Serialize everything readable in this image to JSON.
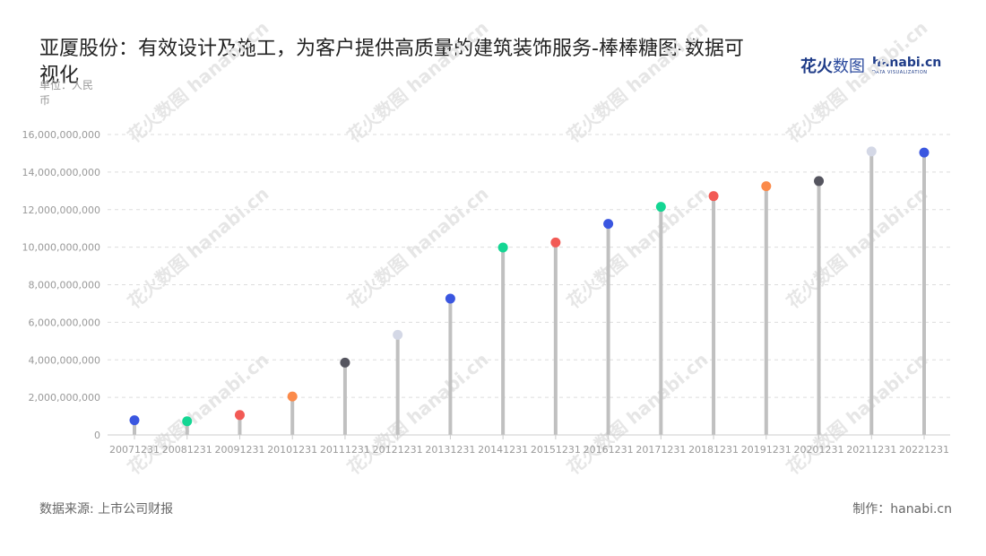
{
  "header": {
    "title": "亚厦股份：有效设计及施工，为客户提供高质量的建筑装饰服务-棒棒糖图-数据可视化",
    "unit": "单位：人民币"
  },
  "logo": {
    "cn_text": "花火",
    "cn_text_light": "数图",
    "en_text": "hanabi.cn",
    "en_sub": "DATA VISUALIZATION"
  },
  "footer": {
    "source": "数据来源: 上市公司财报",
    "credit": "制作：hanabi.cn"
  },
  "chart_data": {
    "type": "lollipop",
    "categories": [
      "20071231",
      "20081231",
      "20091231",
      "20101231",
      "20111231",
      "20121231",
      "20131231",
      "20141231",
      "20151231",
      "20161231",
      "20171231",
      "20181231",
      "20191231",
      "20201231",
      "20211231",
      "20221231"
    ],
    "values": [
      780000000,
      730000000,
      1060000000,
      2050000000,
      3850000000,
      5330000000,
      7260000000,
      9980000000,
      10250000000,
      11240000000,
      12150000000,
      12720000000,
      13250000000,
      13520000000,
      15100000000,
      15040000000
    ],
    "ylim": [
      0,
      16000000000
    ],
    "yticks": [
      0,
      2000000000,
      4000000000,
      6000000000,
      8000000000,
      10000000000,
      12000000000,
      14000000000,
      16000000000
    ],
    "yticks_labels": [
      "0",
      "2,000,000,000",
      "4,000,000,000",
      "6,000,000,000",
      "8,000,000,000",
      "10,000,000,000",
      "12,000,000,000",
      "14,000,000,000",
      "16,000,000,000"
    ],
    "grid": true,
    "stem_color": "#c0c0c0",
    "dot_colors": [
      "#3a56e0",
      "#14d693",
      "#f25a55",
      "#fb8a4a",
      "#55555f",
      "#d4d8e6",
      "#3a56e0",
      "#14d693",
      "#f25a55",
      "#3a56e0",
      "#14d693",
      "#f25a55",
      "#fb8a4a",
      "#55555f",
      "#d4d8e6",
      "#3a56e0"
    ]
  }
}
